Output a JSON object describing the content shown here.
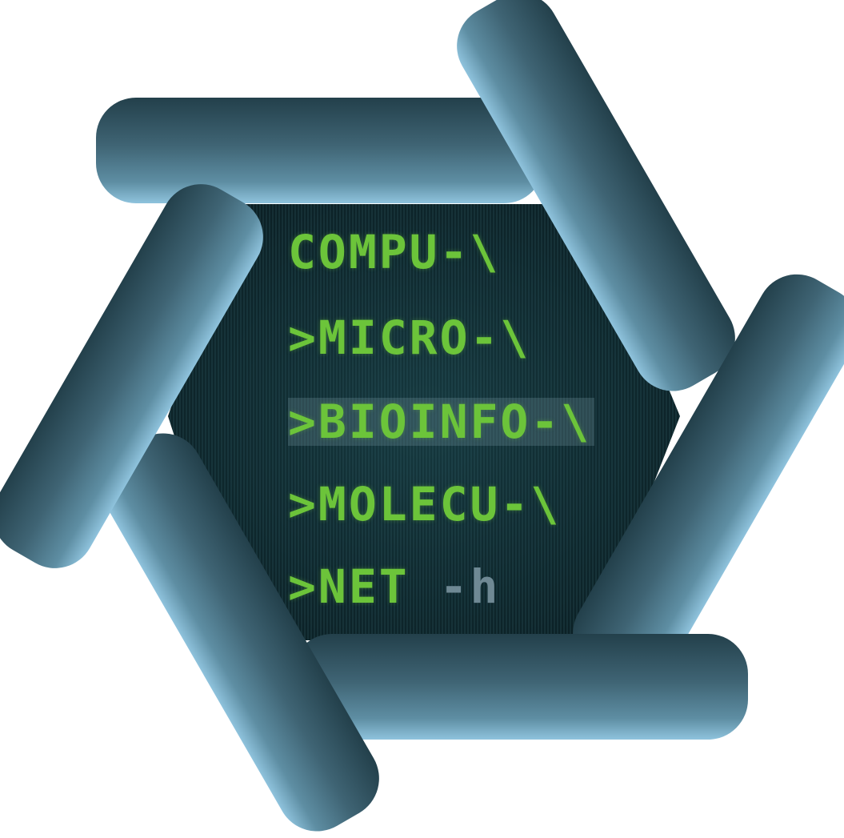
{
  "logo": {
    "colors": {
      "tube_dark": "#23404b",
      "tube_mid": "#3f6474",
      "tube_light": "#8fc3dd",
      "screen_bg": "#0e2a2f",
      "text_green": "#6cc43a",
      "text_dim": "#6f8994"
    },
    "terminal": {
      "lines": [
        {
          "prompt": "",
          "text": "COMPU-\\",
          "dim": ""
        },
        {
          "prompt": ">",
          "text": "MICRO-\\",
          "dim": ""
        },
        {
          "prompt": ">",
          "text": "BIOINFO-\\",
          "dim": ""
        },
        {
          "prompt": ">",
          "text": "MOLECU-\\",
          "dim": ""
        },
        {
          "prompt": ">",
          "text": "NET ",
          "dim": "-h"
        }
      ]
    }
  }
}
